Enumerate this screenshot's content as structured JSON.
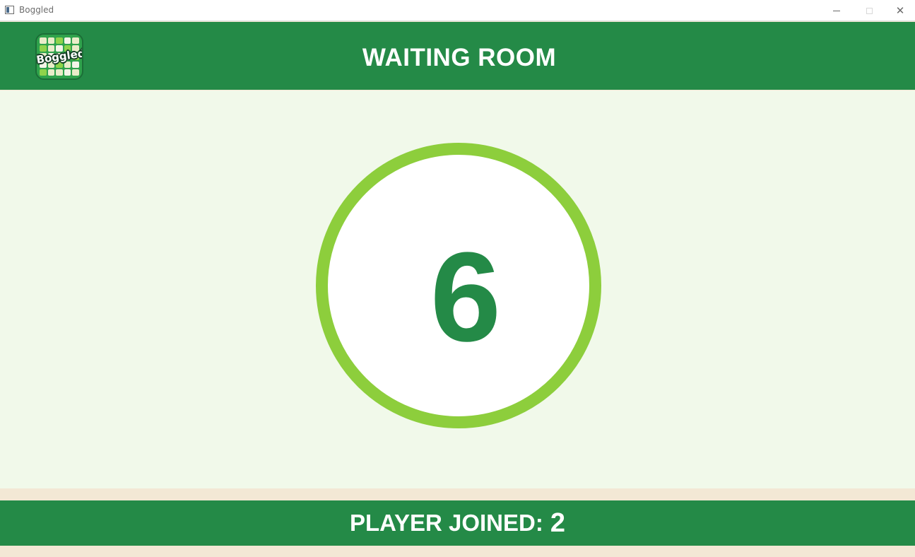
{
  "window": {
    "title": "Boggled",
    "minimize_label": "",
    "close_symbol": "✕"
  },
  "header": {
    "logo_text": "Boggled",
    "title": "WAITING ROOM"
  },
  "countdown": {
    "value": "6"
  },
  "footer": {
    "players_label": "PLAYER JOINED:",
    "players_count": "2"
  },
  "colors": {
    "header_green": "#248a47",
    "ring_green": "#8dce3c",
    "background": "#f1f9ea",
    "strip": "#f3e8d5"
  }
}
